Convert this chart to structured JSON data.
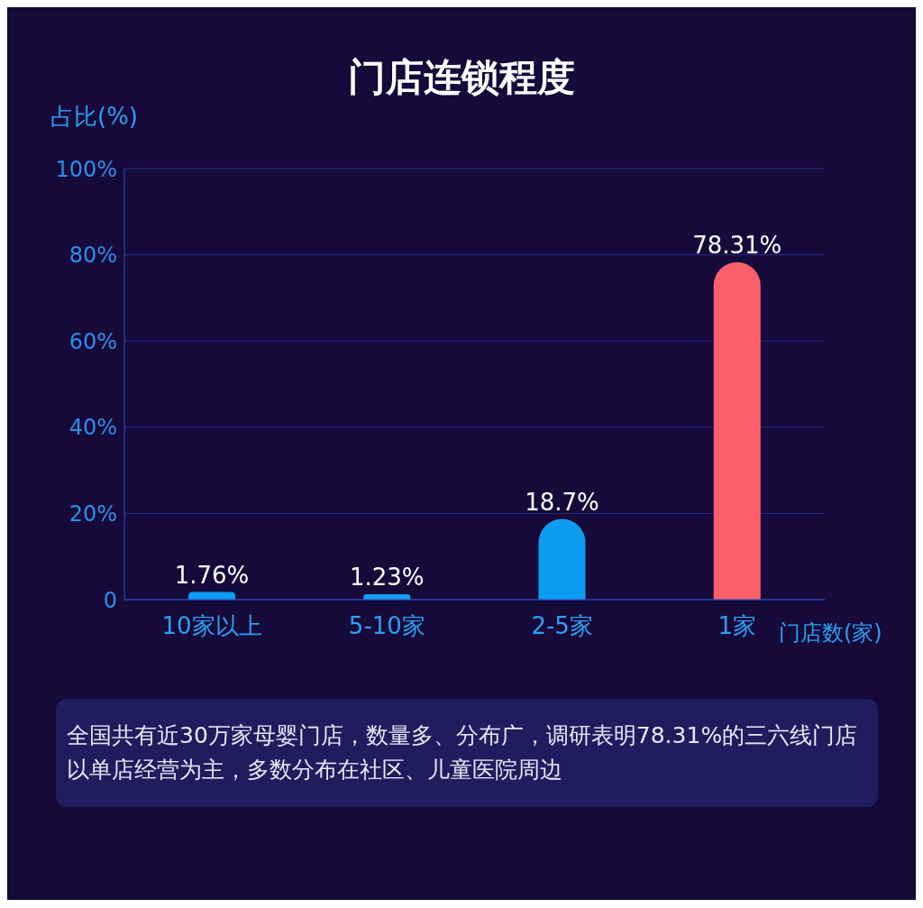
{
  "chart_data": {
    "type": "bar",
    "title": "门店连锁程度",
    "ylabel": "占比(%)",
    "xlabel": "门店数(家)",
    "categories": [
      "10家以上",
      "5-10家",
      "2-5家",
      "1家"
    ],
    "values": [
      1.76,
      1.23,
      18.7,
      78.31
    ],
    "value_labels": [
      "1.76%",
      "1.23%",
      "18.7%",
      "78.31%"
    ],
    "colors": [
      "#0e9cf0",
      "#0e9cf0",
      "#0e9cf0",
      "#f9606a"
    ],
    "ylim": [
      0,
      100
    ],
    "yticks": [
      0,
      {
        "value": 20,
        "label": "20%"
      },
      {
        "value": 40,
        "label": "40%"
      },
      {
        "value": 60,
        "label": "60%"
      },
      {
        "value": 80,
        "label": "80%"
      },
      {
        "value": 100,
        "label": "100%"
      }
    ],
    "grid": "y",
    "annotations": [
      "全国共有近30万家母婴门店，数量多、分布广，调研表明78.31%的三六线门店以单店经营为主，多数分布在社区、儿童医院周边"
    ]
  }
}
